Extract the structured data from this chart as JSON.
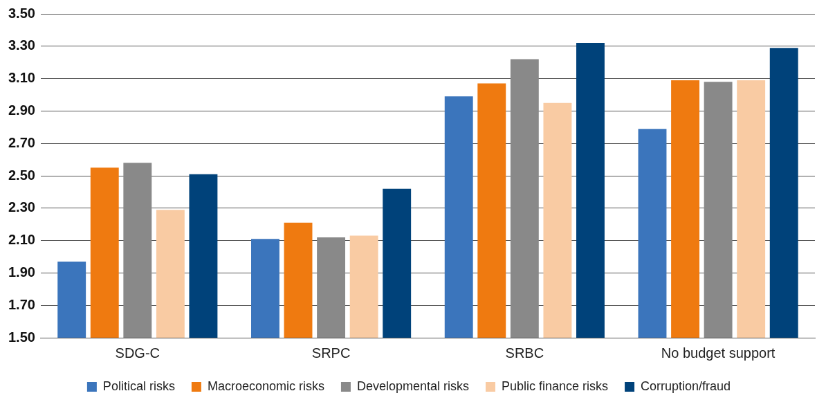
{
  "chart_data": {
    "type": "bar",
    "categories": [
      "SDG-C",
      "SRPC",
      "SRBC",
      "No budget support"
    ],
    "series": [
      {
        "name": "Political risks",
        "color": "#3b75bc",
        "values": [
          1.97,
          2.11,
          2.99,
          2.79
        ]
      },
      {
        "name": "Macroeconomic risks",
        "color": "#ef7a10",
        "values": [
          2.55,
          2.21,
          3.07,
          3.09
        ]
      },
      {
        "name": "Developmental risks",
        "color": "#898989",
        "values": [
          2.58,
          2.12,
          3.22,
          3.08
        ]
      },
      {
        "name": "Public finance risks",
        "color": "#f9cba3",
        "values": [
          2.29,
          2.13,
          2.95,
          3.09
        ]
      },
      {
        "name": "Corruption/fraud",
        "color": "#00427a",
        "values": [
          2.51,
          2.42,
          3.32,
          3.29
        ]
      }
    ],
    "ylim": [
      1.5,
      3.5
    ],
    "yticks": [
      {
        "value": 1.5,
        "label": "1.50"
      },
      {
        "value": 1.7,
        "label": "1.70"
      },
      {
        "value": 1.9,
        "label": "1.90"
      },
      {
        "value": 2.1,
        "label": "2.10"
      },
      {
        "value": 2.3,
        "label": "2.30"
      },
      {
        "value": 2.5,
        "label": "2.50"
      },
      {
        "value": 2.7,
        "label": "2.70"
      },
      {
        "value": 2.9,
        "label": "2.90"
      },
      {
        "value": 3.1,
        "label": "3.10"
      },
      {
        "value": 3.3,
        "label": "3.30"
      },
      {
        "value": 3.5,
        "label": "3.50"
      }
    ],
    "grid": "y",
    "legend": "bottom"
  }
}
